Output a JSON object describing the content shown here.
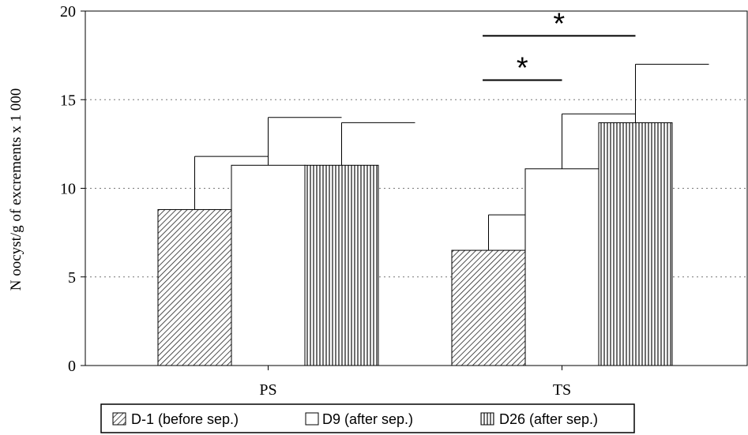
{
  "chart_data": {
    "type": "bar",
    "ylabel": "N oocyst/g of excrements x 1 000",
    "xlabel": "",
    "ylim": [
      0,
      20
    ],
    "yticks": [
      0,
      5,
      10,
      15,
      20
    ],
    "grid": "horizontal dotted",
    "categories": [
      "PS",
      "TS"
    ],
    "series": [
      {
        "name": "D-1 (before sep.)",
        "pattern": "diagonal-hatch",
        "values": [
          8.8,
          6.5
        ],
        "errors": [
          3.0,
          2.0
        ]
      },
      {
        "name": "D9 (after sep.)",
        "pattern": "empty",
        "values": [
          11.3,
          11.1
        ],
        "errors": [
          2.7,
          3.1
        ]
      },
      {
        "name": "D26 (after sep.)",
        "pattern": "vertical-hatch",
        "values": [
          11.3,
          13.7
        ],
        "errors": [
          2.4,
          3.3
        ]
      }
    ],
    "legend": "bottom",
    "annotations": [
      {
        "text": "*",
        "category": "TS",
        "from_series": 0,
        "to_series": 1,
        "level": 16.1
      },
      {
        "text": "*",
        "category": "TS",
        "from_series": 0,
        "to_series": 2,
        "level": 18.6
      }
    ]
  }
}
